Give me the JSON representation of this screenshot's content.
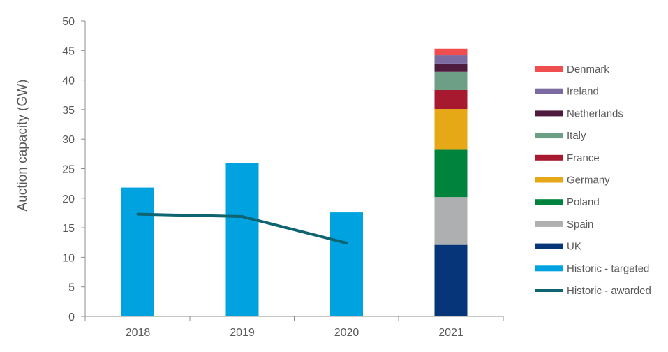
{
  "chart_data": {
    "type": "bar",
    "title": "",
    "xlabel": "",
    "ylabel": "Auction capacity (GW)",
    "ylim": [
      0,
      50
    ],
    "yticks": [
      0,
      5,
      10,
      15,
      20,
      25,
      30,
      35,
      40,
      45,
      50
    ],
    "categories": [
      "2018",
      "2019",
      "2020",
      "2021"
    ],
    "grid": false,
    "legend_position": "right",
    "historic_targeted": {
      "name": "Historic - targeted",
      "color": "#00A3E0",
      "values": [
        21.8,
        25.9,
        17.6,
        null
      ]
    },
    "historic_awarded": {
      "name": "Historic - awarded",
      "color": "#0E6470",
      "type": "line",
      "values": [
        17.3,
        16.9,
        12.4,
        null
      ]
    },
    "stacked_2021": [
      {
        "name": "UK",
        "color": "#06357A",
        "value": 12.1
      },
      {
        "name": "Spain",
        "color": "#AEAFB1",
        "value": 8.1
      },
      {
        "name": "Poland",
        "color": "#00843D",
        "value": 8.0
      },
      {
        "name": "Germany",
        "color": "#E6A817",
        "value": 6.9
      },
      {
        "name": "France",
        "color": "#A6192E",
        "value": 3.2
      },
      {
        "name": "Italy",
        "color": "#6C9F85",
        "value": 3.1
      },
      {
        "name": "Netherlands",
        "color": "#4E1A3E",
        "value": 1.4
      },
      {
        "name": "Ireland",
        "color": "#7B6BA0",
        "value": 1.4
      },
      {
        "name": "Denmark",
        "color": "#F04E4E",
        "value": 1.1
      }
    ],
    "legend": [
      {
        "name": "Denmark",
        "color": "#F04E4E",
        "kind": "box"
      },
      {
        "name": "Ireland",
        "color": "#7B6BA0",
        "kind": "box"
      },
      {
        "name": "Netherlands",
        "color": "#4E1A3E",
        "kind": "box"
      },
      {
        "name": "Italy",
        "color": "#6C9F85",
        "kind": "box"
      },
      {
        "name": "France",
        "color": "#A6192E",
        "kind": "box"
      },
      {
        "name": "Germany",
        "color": "#E6A817",
        "kind": "box"
      },
      {
        "name": "Poland",
        "color": "#00843D",
        "kind": "box"
      },
      {
        "name": "Spain",
        "color": "#AEAFB1",
        "kind": "box"
      },
      {
        "name": "UK",
        "color": "#06357A",
        "kind": "box"
      },
      {
        "name": "Historic - targeted",
        "color": "#00A3E0",
        "kind": "box"
      },
      {
        "name": "Historic - awarded",
        "color": "#0E6470",
        "kind": "line"
      }
    ]
  }
}
